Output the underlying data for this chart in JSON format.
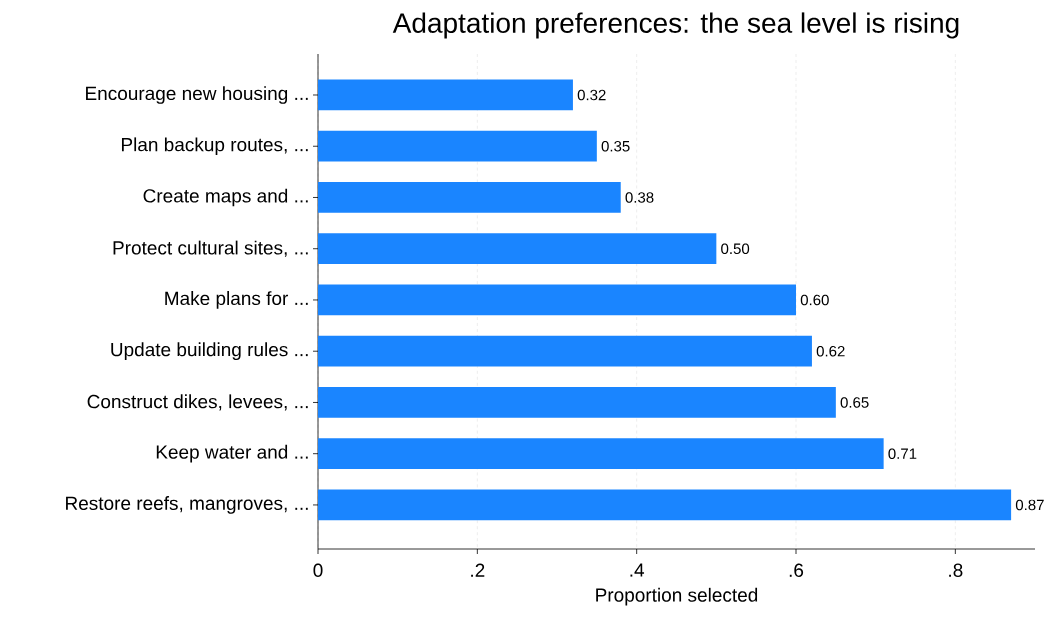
{
  "chart_data": {
    "type": "bar",
    "orientation": "horizontal",
    "title": "Adaptation preferences: the sea level is rising",
    "xlabel": "Proportion selected",
    "categories": [
      "Encourage new housing ...",
      "Plan backup routes, ...",
      "Create maps and ...",
      "Protect cultural sites, ...",
      "Make plans for ...",
      "Update building rules ...",
      "Construct dikes, levees, ...",
      "Keep water and ...",
      "Restore reefs, mangroves, ..."
    ],
    "values": [
      0.32,
      0.35,
      0.38,
      0.5,
      0.6,
      0.62,
      0.65,
      0.71,
      0.87
    ],
    "value_labels": [
      "0.32",
      "0.35",
      "0.38",
      "0.50",
      "0.60",
      "0.62",
      "0.65",
      "0.71",
      "0.87"
    ],
    "color": "#1a85ff",
    "xlim": [
      0,
      0.9
    ],
    "xticks": [
      0,
      {
        "value": 0.2,
        "label": ".2"
      },
      {
        "value": 0.4,
        "label": ".4"
      },
      {
        "value": 0.6,
        "label": ".6"
      },
      {
        "value": 0.8,
        "label": ".8"
      }
    ],
    "grid": "x"
  }
}
